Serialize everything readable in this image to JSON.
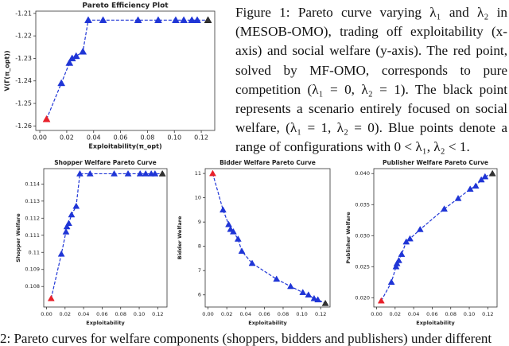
{
  "caption": "Figure 1: Pareto curve varying λ₁ and λ₂ in (MESOB-OMO), trading off exploitability (x-axis) and social welfare (y-axis). The red point, solved by MF-OMO, corresponds to pure competition (λ₁ = 0, λ₂ = 1). The black point represents a scenario entirely focused on social welfare, (λ₁ = 1, λ₂ = 0). Blue points denote a range of configurations with 0 < λ₁, λ₂ < 1.",
  "bottom_caption": "2: Pareto curves for welfare components (shoppers, bidders and publishers) under different",
  "chart_data": [
    {
      "type": "line",
      "title": "Pareto Efficiency Plot",
      "x_label": "Exploitability(π_opt)",
      "y_label": "V(Γ(π_opt))",
      "x": [
        0.005,
        0.016,
        0.022,
        0.024,
        0.027,
        0.032,
        0.036,
        0.047,
        0.073,
        0.088,
        0.101,
        0.107,
        0.113,
        0.117,
        0.125
      ],
      "values": [
        -1.257,
        -1.241,
        -1.232,
        -1.23,
        -1.229,
        -1.227,
        -1.213,
        -1.213,
        -1.213,
        -1.213,
        -1.213,
        -1.213,
        -1.213,
        -1.213,
        -1.213
      ],
      "color": "#1f35d6",
      "first_color": "#e8202a",
      "last_color": "#333333",
      "xlim": [
        -0.003,
        0.13
      ],
      "ylim": [
        -1.262,
        -1.209
      ],
      "xticks": [
        {
          "value": 0,
          "label": "0.00"
        },
        0.02,
        0.04,
        0.06,
        0.08,
        {
          "value": 0.1,
          "label": "0.10"
        },
        0.12
      ],
      "yticks": [
        -1.26,
        -1.25,
        -1.24,
        -1.23,
        -1.22,
        -1.21
      ],
      "grid": false
    },
    {
      "type": "line",
      "title": "Shopper Welfare Pareto Curve",
      "x_label": "Exploitability",
      "y_label": "Shopper Welfare",
      "x": [
        0.005,
        0.016,
        0.021,
        0.022,
        0.024,
        0.027,
        0.032,
        0.036,
        0.047,
        0.073,
        0.088,
        0.101,
        0.107,
        0.113,
        0.117,
        0.125
      ],
      "values": [
        0.1073,
        0.1099,
        0.1112,
        0.1115,
        0.1117,
        0.1122,
        0.1127,
        0.1146,
        0.1146,
        0.1146,
        0.1146,
        0.1146,
        0.1146,
        0.1146,
        0.1146,
        0.1146
      ],
      "color": "#1f35d6",
      "first_color": "#e8202a",
      "last_color": "#333333",
      "xlim": [
        -0.003,
        0.13
      ],
      "ylim": [
        0.1068,
        0.1149
      ],
      "xticks": [
        {
          "value": 0,
          "label": "0.00"
        },
        0.02,
        0.04,
        0.06,
        0.08,
        {
          "value": 0.1,
          "label": "0.10"
        },
        0.12
      ],
      "yticks": [
        0.108,
        0.109,
        0.11,
        0.111,
        0.112,
        0.113,
        0.114
      ],
      "grid": false
    },
    {
      "type": "line",
      "title": "Bidder Welfare Pareto Curve",
      "x_label": "Exploitability",
      "y_label": "Bidder Welfare",
      "x": [
        0.005,
        0.016,
        0.022,
        0.024,
        0.027,
        0.032,
        0.036,
        0.047,
        0.073,
        0.088,
        0.101,
        0.107,
        0.113,
        0.117,
        0.125
      ],
      "values": [
        11.0,
        9.5,
        8.9,
        8.7,
        8.6,
        8.3,
        7.8,
        7.3,
        6.65,
        6.35,
        6.1,
        6.0,
        5.85,
        5.8,
        5.65
      ],
      "color": "#1f35d6",
      "first_color": "#e8202a",
      "last_color": "#333333",
      "xlim": [
        -0.003,
        0.13
      ],
      "ylim": [
        5.5,
        11.2
      ],
      "xticks": [
        {
          "value": 0,
          "label": "0.00"
        },
        0.02,
        0.04,
        0.06,
        0.08,
        {
          "value": 0.1,
          "label": "0.10"
        },
        0.12
      ],
      "yticks": [
        6,
        7,
        8,
        9,
        10,
        11
      ],
      "grid": false
    },
    {
      "type": "line",
      "title": "Publisher Welfare Pareto Curve",
      "x_label": "Exploitability",
      "y_label": "Publisher Welfare",
      "x": [
        0.005,
        0.016,
        0.021,
        0.022,
        0.024,
        0.027,
        0.032,
        0.036,
        0.047,
        0.073,
        0.088,
        0.101,
        0.107,
        0.113,
        0.117,
        0.125
      ],
      "values": [
        0.0195,
        0.0225,
        0.025,
        0.0255,
        0.026,
        0.027,
        0.029,
        0.0295,
        0.031,
        0.0343,
        0.036,
        0.0375,
        0.038,
        0.039,
        0.0395,
        0.04
      ],
      "color": "#1f35d6",
      "first_color": "#e8202a",
      "last_color": "#333333",
      "xlim": [
        -0.003,
        0.13
      ],
      "ylim": [
        0.0185,
        0.0408
      ],
      "xticks": [
        {
          "value": 0,
          "label": "0.00"
        },
        0.02,
        0.04,
        0.06,
        0.08,
        {
          "value": 0.1,
          "label": "0.10"
        },
        0.12
      ],
      "yticks": [
        {
          "value": 0.02,
          "label": "0.020"
        },
        0.025,
        {
          "value": 0.03,
          "label": "0.030"
        },
        0.035,
        {
          "value": 0.04,
          "label": "0.040"
        }
      ],
      "grid": false
    }
  ]
}
